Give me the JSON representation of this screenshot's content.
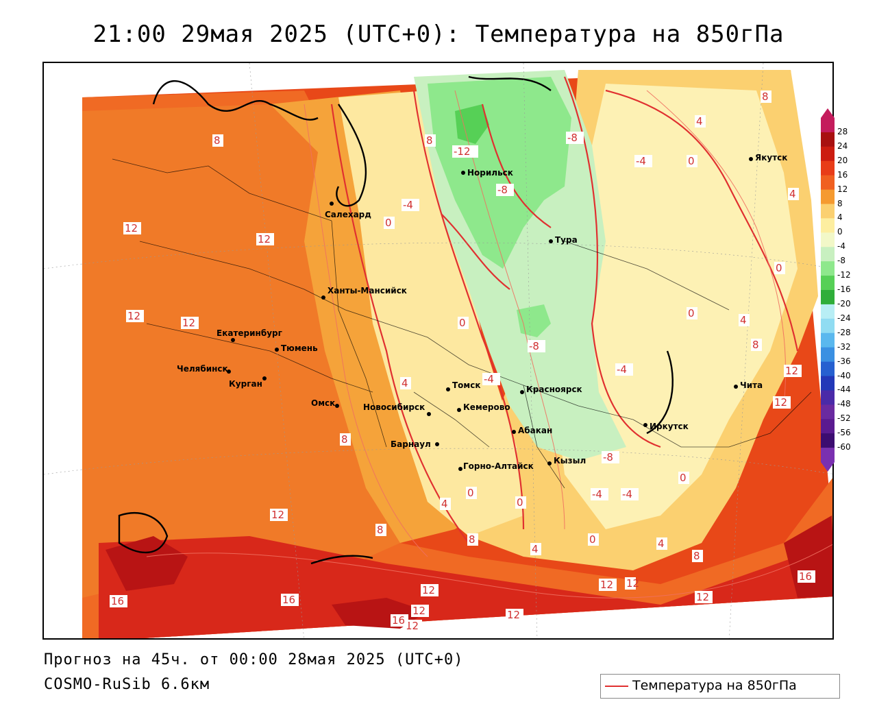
{
  "header": {
    "title": "21:00 29мая 2025 (UTC+0): Температура на 850гПа"
  },
  "footer": {
    "forecast": "Прогноз на 45ч. от 00:00 28мая 2025 (UTC+0)",
    "model": "COSMO-RuSib 6.6км"
  },
  "legend": {
    "label": "Температура на 850гПа",
    "line_color": "#e03030"
  },
  "colorbar": {
    "ticks": [
      "28",
      "24",
      "20",
      "16",
      "12",
      "8",
      "4",
      "0",
      "-4",
      "-8",
      "-12",
      "-16",
      "-20",
      "-24",
      "-28",
      "-32",
      "-36",
      "-40",
      "-44",
      "-48",
      "-52",
      "-56",
      "-60"
    ],
    "colors": [
      "#c41c5c",
      "#a81010",
      "#cc1c10",
      "#e83c18",
      "#f06020",
      "#f59a30",
      "#fbd070",
      "#fdeea0",
      "#f2f8c8",
      "#c8f0c0",
      "#8ee88c",
      "#56d056",
      "#2fae3a",
      "#b8eef5",
      "#90dcf2",
      "#5ab8ee",
      "#3a90e2",
      "#2660d0",
      "#2238b8",
      "#4a2aa8",
      "#6a2aa0",
      "#5a1a90",
      "#3c0c70",
      "#7a30b0"
    ]
  },
  "cities": [
    {
      "name": "Норильск"
    },
    {
      "name": "Салехард"
    },
    {
      "name": "Тура"
    },
    {
      "name": "Якутск"
    },
    {
      "name": "Ханты-Мансийск"
    },
    {
      "name": "Екатеринбург"
    },
    {
      "name": "Тюмень"
    },
    {
      "name": "Челябинск"
    },
    {
      "name": "Курган"
    },
    {
      "name": "Омск"
    },
    {
      "name": "Новосибирск"
    },
    {
      "name": "Томск"
    },
    {
      "name": "Кемерово"
    },
    {
      "name": "Красноярск"
    },
    {
      "name": "Барнаул"
    },
    {
      "name": "Абакан"
    },
    {
      "name": "Иркутск"
    },
    {
      "name": "Чита"
    },
    {
      "name": "Горно-Алтайск"
    },
    {
      "name": "Кызыл"
    }
  ],
  "isotherm_labels": [
    "8",
    "-12",
    "-8",
    "8",
    "4",
    "0",
    "-4",
    "8",
    "-8",
    "-4",
    "4",
    "0",
    "12",
    "12",
    "12",
    "12",
    "0",
    "0",
    "-8",
    "-4",
    "-4",
    "0",
    "4",
    "8",
    "12",
    "12",
    "4",
    "8",
    "-8",
    "0",
    "-4",
    "0",
    "4",
    "0",
    "8",
    "12",
    "8",
    "4",
    "0",
    "-4",
    "4",
    "8",
    "12",
    "12",
    "16",
    "16",
    "12",
    "12",
    "16",
    "12",
    "12",
    "12",
    "16"
  ]
}
